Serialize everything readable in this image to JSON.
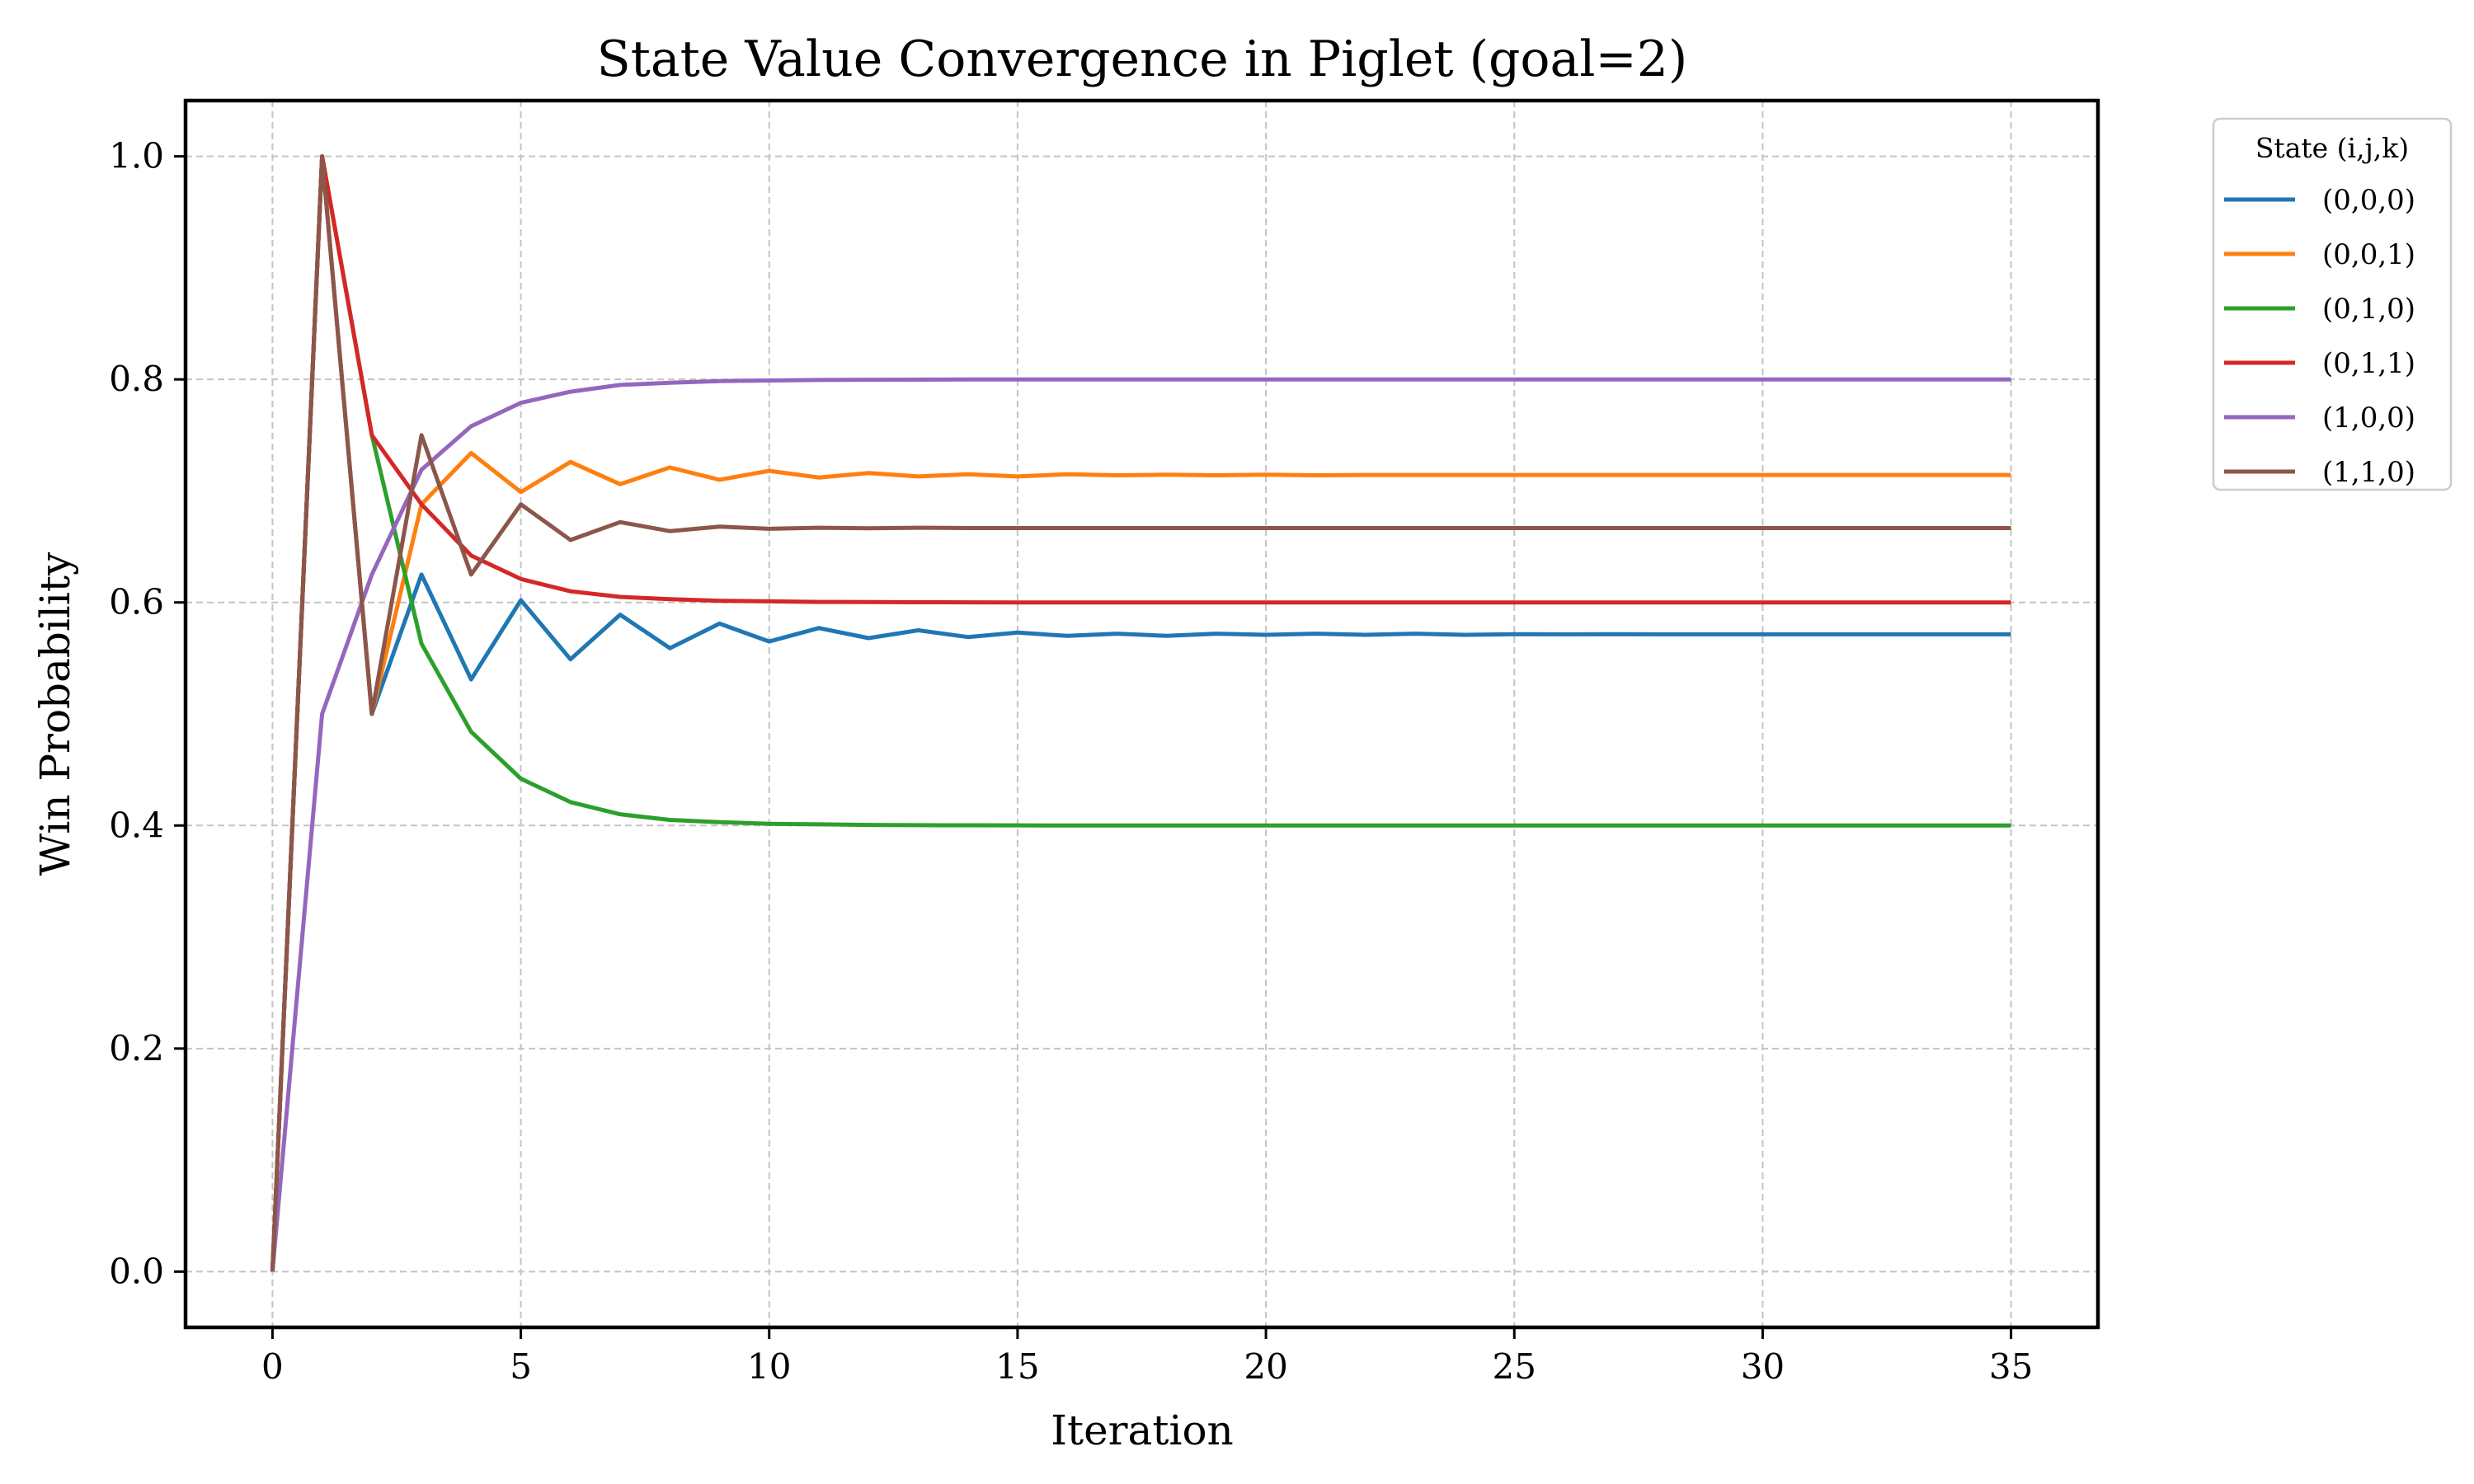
{
  "chart_data": {
    "type": "line",
    "title": "State Value Convergence in Piglet (goal=2)",
    "xlabel": "Iteration",
    "ylabel": "Win Probability",
    "xlim": [
      -1.75,
      36.75
    ],
    "ylim": [
      -0.05,
      1.05
    ],
    "xticks": [
      0,
      5,
      10,
      15,
      20,
      25,
      30,
      35
    ],
    "xtick_labels": [
      "0",
      "5",
      "10",
      "15",
      "20",
      "25",
      "30",
      "35"
    ],
    "yticks": [
      0.0,
      0.2,
      0.4,
      0.6,
      0.8,
      1.0
    ],
    "ytick_labels": [
      "0.0",
      "0.2",
      "0.4",
      "0.6",
      "0.8",
      "1.0"
    ],
    "grid": true,
    "legend": {
      "title": "State (i,j,k)",
      "placement": "outside upper right"
    },
    "x": [
      0,
      1,
      2,
      3,
      4,
      5,
      6,
      7,
      8,
      9,
      10,
      11,
      12,
      13,
      14,
      15,
      16,
      17,
      18,
      19,
      20,
      21,
      22,
      23,
      24,
      25,
      26,
      27,
      28,
      29,
      30,
      31,
      32,
      33,
      34,
      35
    ],
    "series": [
      {
        "name": "(0,0,0)",
        "color": "#1f77b4",
        "values": [
          0.0,
          1.0,
          0.5,
          0.625,
          0.531,
          0.602,
          0.549,
          0.589,
          0.559,
          0.581,
          0.565,
          0.577,
          0.568,
          0.575,
          0.569,
          0.573,
          0.57,
          0.572,
          0.57,
          0.572,
          0.571,
          0.572,
          0.571,
          0.572,
          0.571,
          0.5715,
          0.5714,
          0.5715,
          0.5714,
          0.5714,
          0.5714,
          0.5714,
          0.5714,
          0.5714,
          0.5714,
          0.5714
        ]
      },
      {
        "name": "(0,0,1)",
        "color": "#ff7f0e",
        "values": [
          0.0,
          1.0,
          0.5,
          0.688,
          0.734,
          0.699,
          0.726,
          0.706,
          0.721,
          0.71,
          0.718,
          0.712,
          0.716,
          0.713,
          0.715,
          0.713,
          0.715,
          0.714,
          0.7145,
          0.714,
          0.7145,
          0.714,
          0.7143,
          0.7143,
          0.7143,
          0.7143,
          0.7143,
          0.7143,
          0.7143,
          0.7143,
          0.7143,
          0.7143,
          0.7143,
          0.7143,
          0.7143,
          0.7143
        ]
      },
      {
        "name": "(0,1,0)",
        "color": "#2ca02c",
        "values": [
          0.0,
          1.0,
          0.75,
          0.563,
          0.484,
          0.442,
          0.421,
          0.41,
          0.405,
          0.403,
          0.4015,
          0.401,
          0.4005,
          0.4003,
          0.4002,
          0.4001,
          0.4,
          0.4,
          0.4,
          0.4,
          0.4,
          0.4,
          0.4,
          0.4,
          0.4,
          0.4,
          0.4,
          0.4,
          0.4,
          0.4,
          0.4,
          0.4,
          0.4,
          0.4,
          0.4,
          0.4
        ]
      },
      {
        "name": "(0,1,1)",
        "color": "#d62728",
        "values": [
          0.0,
          1.0,
          0.75,
          0.688,
          0.642,
          0.621,
          0.61,
          0.605,
          0.603,
          0.6015,
          0.601,
          0.6005,
          0.6003,
          0.6002,
          0.6001,
          0.6,
          0.6,
          0.6,
          0.6,
          0.6,
          0.6,
          0.6,
          0.6,
          0.6,
          0.6,
          0.6,
          0.6,
          0.6,
          0.6,
          0.6,
          0.6,
          0.6,
          0.6,
          0.6,
          0.6,
          0.6
        ]
      },
      {
        "name": "(1,0,0)",
        "color": "#9467bd",
        "values": [
          0.0,
          0.5,
          0.625,
          0.719,
          0.758,
          0.779,
          0.789,
          0.795,
          0.797,
          0.7985,
          0.799,
          0.7995,
          0.7997,
          0.7998,
          0.7999,
          0.8,
          0.8,
          0.8,
          0.8,
          0.8,
          0.8,
          0.8,
          0.8,
          0.8,
          0.8,
          0.8,
          0.8,
          0.8,
          0.8,
          0.8,
          0.8,
          0.8,
          0.8,
          0.8,
          0.8,
          0.8
        ]
      },
      {
        "name": "(1,1,0)",
        "color": "#8c564b",
        "values": [
          0.0,
          1.0,
          0.5,
          0.75,
          0.625,
          0.688,
          0.656,
          0.672,
          0.664,
          0.668,
          0.666,
          0.667,
          0.6665,
          0.667,
          0.6667,
          0.6667,
          0.6667,
          0.6667,
          0.6667,
          0.6667,
          0.6667,
          0.6667,
          0.6667,
          0.6667,
          0.6667,
          0.6667,
          0.6667,
          0.6667,
          0.6667,
          0.6667,
          0.6667,
          0.6667,
          0.6667,
          0.6667,
          0.6667,
          0.6667
        ]
      }
    ]
  }
}
